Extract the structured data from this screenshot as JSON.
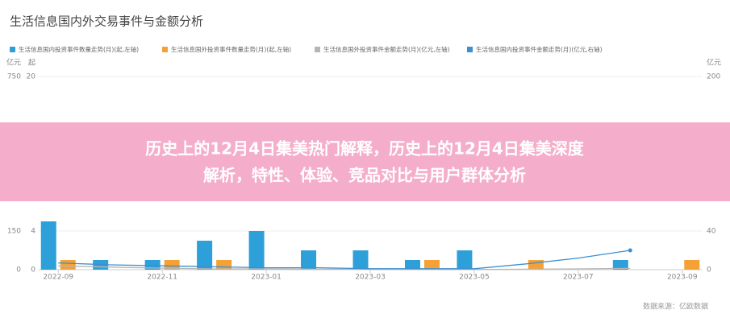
{
  "chart_data": {
    "type": "bar-line",
    "title": "生活信息国内外交易事件与金额分析",
    "categories": [
      "2022-09",
      null,
      "2022-11",
      null,
      "2023-01",
      null,
      "2023-03",
      null,
      "2023-05",
      null,
      "2023-07",
      null,
      "2023-09"
    ],
    "axes": [
      {
        "label": "亿元",
        "lim": [
          0,
          750
        ],
        "ticks": [
          0,
          150,
          750
        ],
        "side": "left"
      },
      {
        "label": "起",
        "lim": [
          0,
          20
        ],
        "ticks": [
          0,
          4,
          20
        ],
        "side": "left"
      },
      {
        "label": "亿元",
        "lim": [
          0,
          200
        ],
        "ticks": [
          0,
          40,
          200
        ],
        "side": "right"
      }
    ],
    "grid": true,
    "series": [
      {
        "name": "生活信息国内投资事件数量走势(月)(起,左轴)",
        "kind": "bar",
        "axis": 1,
        "color": "#2d9fd9",
        "values": [
          5,
          1,
          1,
          3,
          4,
          2,
          2,
          1,
          2,
          null,
          null,
          1,
          null
        ]
      },
      {
        "name": "生活信息国外投资事件数量走势(月)(起,左轴)",
        "kind": "bar",
        "axis": 1,
        "color": "#f5a136",
        "values": [
          1,
          null,
          1,
          1,
          null,
          null,
          null,
          1,
          null,
          1,
          null,
          null,
          1
        ]
      },
      {
        "name": "生活信息国外投资事件金额走势(月)(亿元,左轴)",
        "kind": "line",
        "axis": 0,
        "color": "#b5b5b5",
        "values": [
          15,
          10,
          6,
          3,
          3,
          2,
          2,
          1,
          1,
          2,
          3,
          5,
          null
        ]
      },
      {
        "name": "生活信息国内投资事件金额走势(月)(亿元,右轴)",
        "kind": "line",
        "axis": 2,
        "color": "#3d8fcf",
        "values": [
          7,
          5,
          4,
          3,
          2,
          2,
          1,
          1,
          1,
          6,
          12,
          20,
          null
        ]
      }
    ]
  },
  "banner": [
    "历史上的12月4日集美热门解释，历史上的12月4日集美深度",
    "解析，特性、体验、竞品对比与用户群体分析"
  ],
  "source": "数据来源：亿欧数据"
}
